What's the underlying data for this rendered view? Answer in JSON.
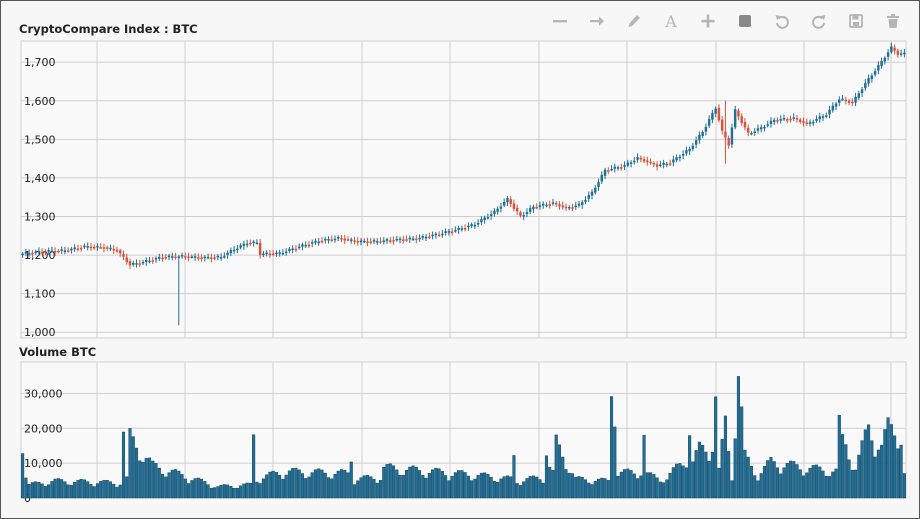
{
  "chart_data": [
    {
      "type": "candlestick",
      "title": "CryptoCompare Index : BTC",
      "yticks": [
        1000,
        1100,
        1200,
        1300,
        1400,
        1500,
        1600,
        1700
      ],
      "ytick_labels": [
        "1,000",
        "1,100",
        "1,200",
        "1,300",
        "1,400",
        "1,500",
        "1,600",
        "1,700"
      ],
      "ylim": [
        985,
        1755
      ],
      "grid": true,
      "up_color": "#1f6f97",
      "down_color": "#d9533b",
      "price_anchors": [
        [
          0,
          1203
        ],
        [
          8,
          1210
        ],
        [
          14,
          1212
        ],
        [
          20,
          1222
        ],
        [
          26,
          1220
        ],
        [
          30,
          1212
        ],
        [
          34,
          1175
        ],
        [
          38,
          1182
        ],
        [
          44,
          1195
        ],
        [
          50,
          1197
        ],
        [
          56,
          1193
        ],
        [
          62,
          1195
        ],
        [
          66,
          1215
        ],
        [
          70,
          1232
        ],
        [
          73,
          1232
        ],
        [
          74,
          1203
        ],
        [
          80,
          1205
        ],
        [
          86,
          1222
        ],
        [
          92,
          1237
        ],
        [
          98,
          1244
        ],
        [
          104,
          1235
        ],
        [
          110,
          1236
        ],
        [
          116,
          1240
        ],
        [
          122,
          1243
        ],
        [
          128,
          1253
        ],
        [
          134,
          1265
        ],
        [
          140,
          1280
        ],
        [
          146,
          1312
        ],
        [
          150,
          1345
        ],
        [
          154,
          1300
        ],
        [
          158,
          1325
        ],
        [
          164,
          1335
        ],
        [
          168,
          1322
        ],
        [
          172,
          1330
        ],
        [
          176,
          1362
        ],
        [
          180,
          1420
        ],
        [
          186,
          1432
        ],
        [
          190,
          1452
        ],
        [
          196,
          1432
        ],
        [
          200,
          1440
        ],
        [
          206,
          1475
        ],
        [
          210,
          1520
        ],
        [
          214,
          1582
        ],
        [
          216,
          1520
        ],
        [
          218,
          1487
        ],
        [
          220,
          1575
        ],
        [
          224,
          1515
        ],
        [
          228,
          1530
        ],
        [
          232,
          1550
        ],
        [
          238,
          1555
        ],
        [
          242,
          1540
        ],
        [
          248,
          1565
        ],
        [
          252,
          1605
        ],
        [
          256,
          1595
        ],
        [
          260,
          1645
        ],
        [
          264,
          1690
        ],
        [
          268,
          1738
        ],
        [
          270,
          1722
        ]
      ],
      "wicks": [
        {
          "index": 48,
          "low": 1018,
          "high": 1200
        },
        {
          "index": 216,
          "low": 1437,
          "high": 1600
        }
      ]
    },
    {
      "type": "bar",
      "title": "Volume BTC",
      "yticks": [
        0,
        10000,
        20000,
        30000
      ],
      "ytick_labels": [
        "0",
        "10,000",
        "20,000",
        "30,000"
      ],
      "ylim": [
        0,
        39000
      ],
      "grid": true,
      "bar_color": "#1f6f97",
      "volume_anchors": [
        [
          0,
          17000
        ],
        [
          1,
          6000
        ],
        [
          2,
          3500
        ],
        [
          10,
          4500
        ],
        [
          30,
          4000
        ],
        [
          31,
          17000
        ],
        [
          32,
          5000
        ],
        [
          33,
          16000
        ],
        [
          40,
          8500
        ],
        [
          60,
          3000
        ],
        [
          70,
          3500
        ],
        [
          71,
          16500
        ],
        [
          72,
          5000
        ],
        [
          80,
          7000
        ],
        [
          100,
          6500
        ],
        [
          101,
          11000
        ],
        [
          102,
          5000
        ],
        [
          110,
          5500
        ],
        [
          111,
          8000
        ],
        [
          140,
          6000
        ],
        [
          150,
          5000
        ],
        [
          151,
          11000
        ],
        [
          152,
          4500
        ],
        [
          160,
          5500
        ],
        [
          161,
          13000
        ],
        [
          162,
          8000
        ],
        [
          163,
          6500
        ],
        [
          164,
          14500
        ],
        [
          170,
          5000
        ],
        [
          180,
          4500
        ],
        [
          181,
          30500
        ],
        [
          182,
          27000
        ],
        [
          183,
          6500
        ],
        [
          190,
          7000
        ],
        [
          191,
          16500
        ],
        [
          192,
          6000
        ],
        [
          198,
          5000
        ],
        [
          204,
          11000
        ],
        [
          205,
          18000
        ],
        [
          206,
          9000
        ],
        [
          208,
          13000
        ],
        [
          212,
          14000
        ],
        [
          213,
          26000
        ],
        [
          214,
          7000
        ],
        [
          216,
          20000
        ],
        [
          218,
          6000
        ],
        [
          220,
          32500
        ],
        [
          222,
          11000
        ],
        [
          226,
          6000
        ],
        [
          230,
          9500
        ],
        [
          240,
          8000
        ],
        [
          250,
          7000
        ],
        [
          251,
          19000
        ],
        [
          252,
          15000
        ],
        [
          253,
          14000
        ],
        [
          256,
          8000
        ],
        [
          260,
          18500
        ],
        [
          262,
          15500
        ],
        [
          264,
          13500
        ],
        [
          266,
          18500
        ],
        [
          268,
          17500
        ],
        [
          270,
          17000
        ],
        [
          271,
          6500
        ]
      ]
    }
  ],
  "toolbar": {
    "icons": [
      "line-icon",
      "arrow-icon",
      "pencil-icon",
      "text-icon",
      "plus-icon",
      "square-icon",
      "undo-icon",
      "redo-icon",
      "save-icon",
      "trash-icon"
    ],
    "icon_color": "#b5b5b5",
    "text_tool_glyph": "A"
  }
}
